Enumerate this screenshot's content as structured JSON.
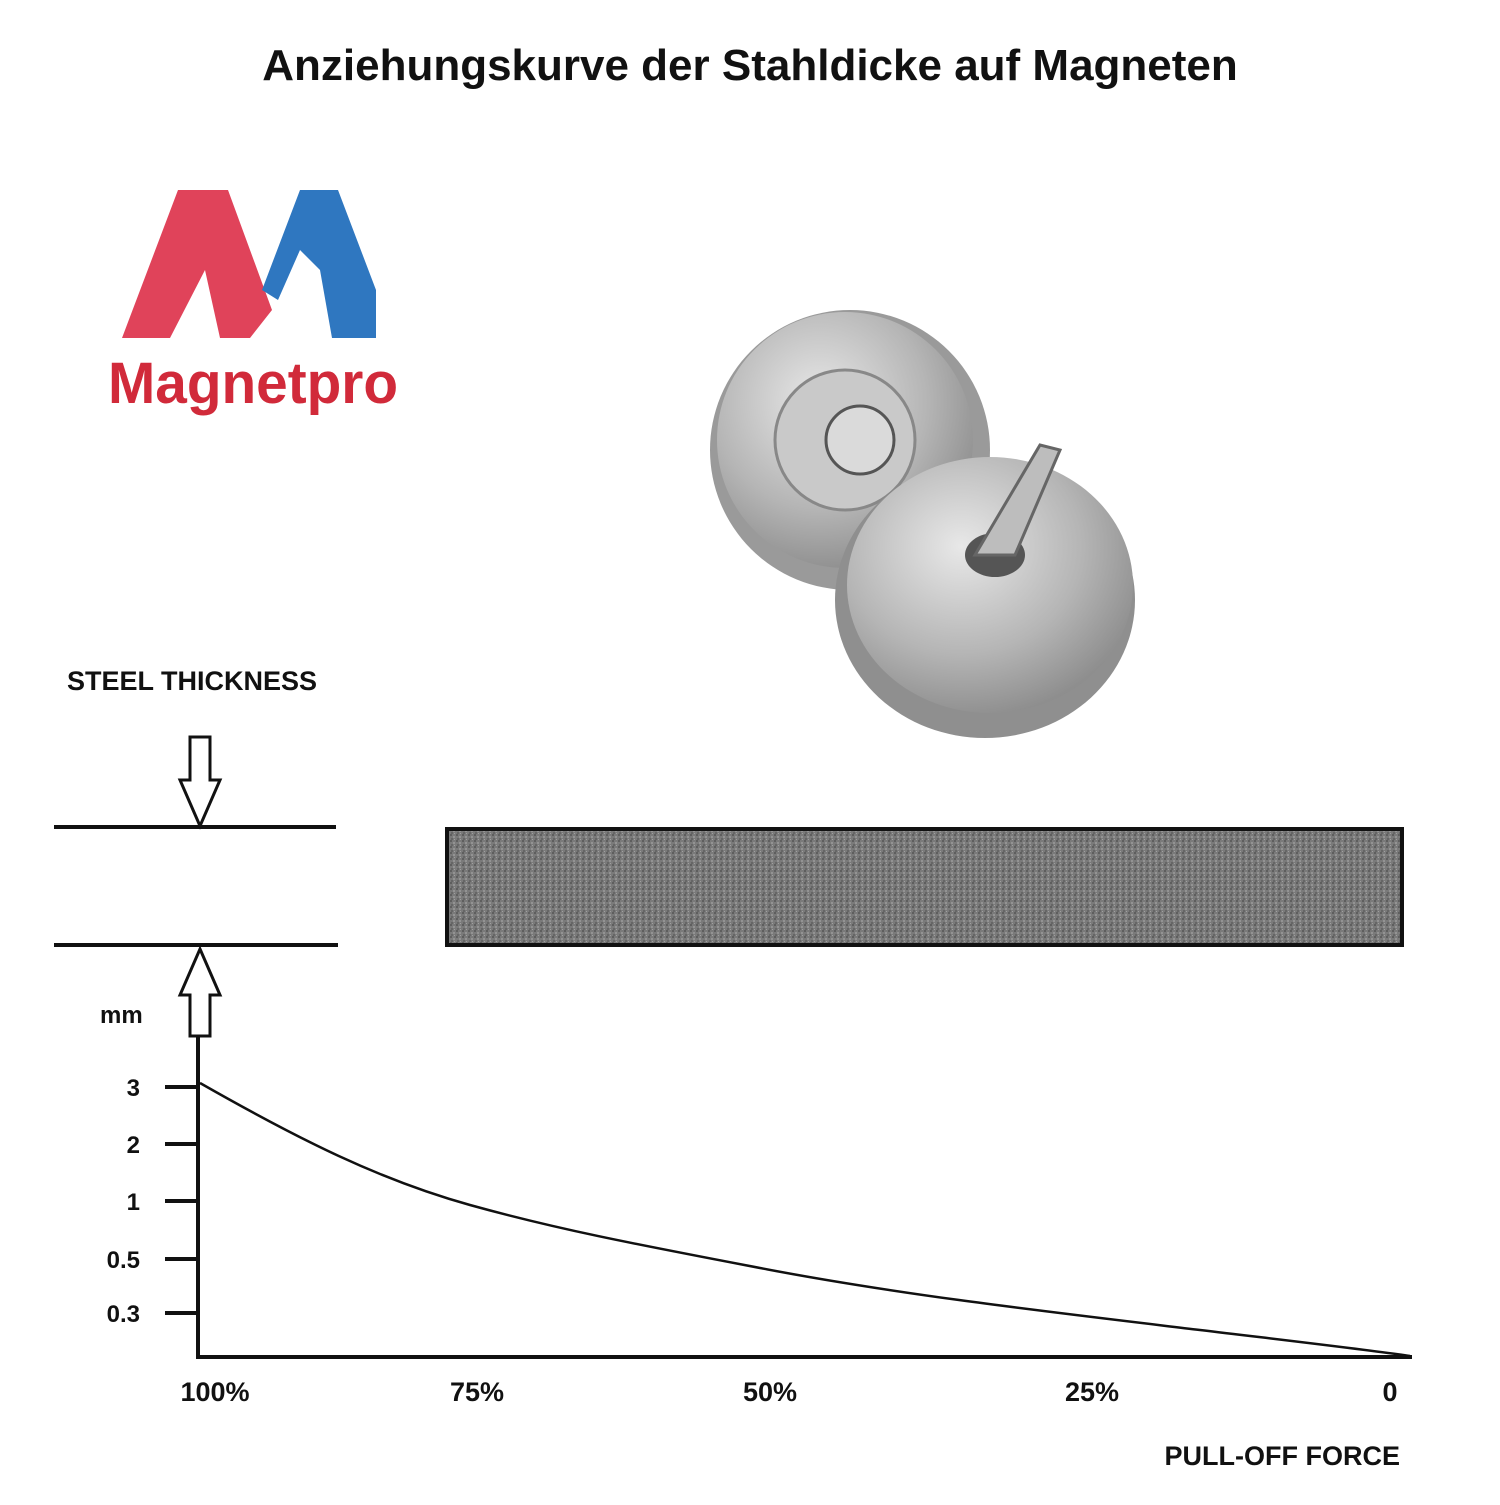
{
  "title": "Anziehungskurve der Stahldicke auf Magneten",
  "logo": {
    "text": "Magnetpro"
  },
  "steel_label": "STEEL THICKNESS",
  "y_axis": {
    "unit": "mm",
    "ticks": [
      "3",
      "2",
      "1",
      "0.5",
      "0.3"
    ]
  },
  "x_axis": {
    "label": "PULL-OFF FORCE",
    "ticks": [
      "100%",
      "75%",
      "50%",
      "25%",
      "0"
    ]
  }
}
